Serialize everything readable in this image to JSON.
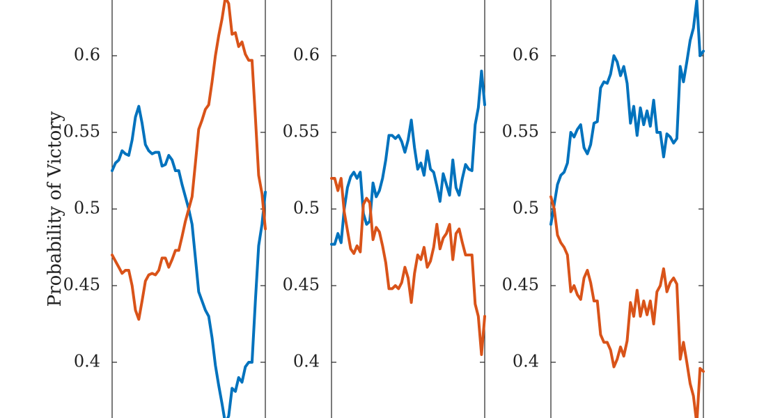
{
  "chart_data": {
    "type": "line",
    "ylabel": "Probability of Victory",
    "ylim": [
      0.365,
      0.638
    ],
    "yticks": [
      0.4,
      0.45,
      0.5,
      0.55,
      0.6
    ],
    "ytick_labels": [
      "0.4",
      "0.45",
      "0.5",
      "0.55",
      "0.6"
    ],
    "series_colors": [
      "#0072BD",
      "#D95319"
    ],
    "panels": [
      {
        "series": [
          {
            "values": [
              0.525,
              0.53,
              0.532,
              0.538,
              0.536,
              0.535,
              0.545,
              0.56,
              0.567,
              0.556,
              0.542,
              0.538,
              0.536,
              0.537,
              0.537,
              0.528,
              0.529,
              0.535,
              0.532,
              0.525,
              0.525,
              0.516,
              0.508,
              0.5,
              0.49,
              0.468,
              0.446,
              0.44,
              0.434,
              0.43,
              0.416,
              0.398,
              0.385,
              0.373,
              0.36,
              0.365,
              0.383,
              0.381,
              0.39,
              0.387,
              0.397,
              0.4,
              0.4,
              0.44,
              0.476,
              0.49,
              0.511
            ]
          },
          {
            "values": [
              0.47,
              0.466,
              0.462,
              0.458,
              0.46,
              0.46,
              0.45,
              0.434,
              0.428,
              0.44,
              0.453,
              0.457,
              0.458,
              0.457,
              0.46,
              0.468,
              0.468,
              0.462,
              0.467,
              0.473,
              0.473,
              0.482,
              0.492,
              0.5,
              0.508,
              0.53,
              0.552,
              0.558,
              0.565,
              0.568,
              0.583,
              0.6,
              0.613,
              0.624,
              0.638,
              0.634,
              0.614,
              0.615,
              0.606,
              0.609,
              0.601,
              0.597,
              0.597,
              0.56,
              0.522,
              0.51,
              0.487
            ]
          }
        ]
      },
      {
        "series": [
          {
            "values": [
              0.477,
              0.477,
              0.484,
              0.478,
              0.5,
              0.514,
              0.521,
              0.524,
              0.52,
              0.524,
              0.497,
              0.49,
              0.492,
              0.517,
              0.508,
              0.512,
              0.52,
              0.532,
              0.548,
              0.548,
              0.546,
              0.548,
              0.544,
              0.537,
              0.545,
              0.558,
              0.54,
              0.526,
              0.53,
              0.522,
              0.538,
              0.526,
              0.524,
              0.515,
              0.505,
              0.523,
              0.516,
              0.509,
              0.532,
              0.514,
              0.509,
              0.52,
              0.529,
              0.526,
              0.525,
              0.555,
              0.566,
              0.59,
              0.568
            ]
          },
          {
            "values": [
              0.52,
              0.52,
              0.512,
              0.52,
              0.498,
              0.486,
              0.474,
              0.471,
              0.476,
              0.472,
              0.503,
              0.507,
              0.504,
              0.48,
              0.488,
              0.485,
              0.476,
              0.465,
              0.448,
              0.448,
              0.45,
              0.448,
              0.452,
              0.462,
              0.455,
              0.439,
              0.458,
              0.47,
              0.467,
              0.475,
              0.462,
              0.466,
              0.475,
              0.49,
              0.474,
              0.481,
              0.484,
              0.49,
              0.467,
              0.484,
              0.487,
              0.478,
              0.47,
              0.47,
              0.47,
              0.438,
              0.43,
              0.405,
              0.43
            ]
          }
        ]
      },
      {
        "series": [
          {
            "values": [
              0.49,
              0.503,
              0.516,
              0.522,
              0.524,
              0.53,
              0.55,
              0.547,
              0.552,
              0.555,
              0.54,
              0.536,
              0.542,
              0.556,
              0.557,
              0.579,
              0.583,
              0.582,
              0.588,
              0.6,
              0.596,
              0.587,
              0.593,
              0.582,
              0.556,
              0.567,
              0.548,
              0.566,
              0.555,
              0.564,
              0.554,
              0.571,
              0.55,
              0.55,
              0.534,
              0.549,
              0.547,
              0.543,
              0.546,
              0.593,
              0.583,
              0.596,
              0.61,
              0.618,
              0.636,
              0.6,
              0.603
            ]
          },
          {
            "values": [
              0.508,
              0.5,
              0.483,
              0.478,
              0.475,
              0.47,
              0.446,
              0.45,
              0.444,
              0.441,
              0.455,
              0.46,
              0.452,
              0.44,
              0.44,
              0.418,
              0.413,
              0.413,
              0.408,
              0.397,
              0.402,
              0.41,
              0.404,
              0.414,
              0.439,
              0.43,
              0.447,
              0.43,
              0.44,
              0.431,
              0.44,
              0.425,
              0.446,
              0.45,
              0.461,
              0.446,
              0.452,
              0.455,
              0.451,
              0.402,
              0.413,
              0.4,
              0.386,
              0.378,
              0.36,
              0.396,
              0.394
            ]
          }
        ]
      }
    ]
  }
}
